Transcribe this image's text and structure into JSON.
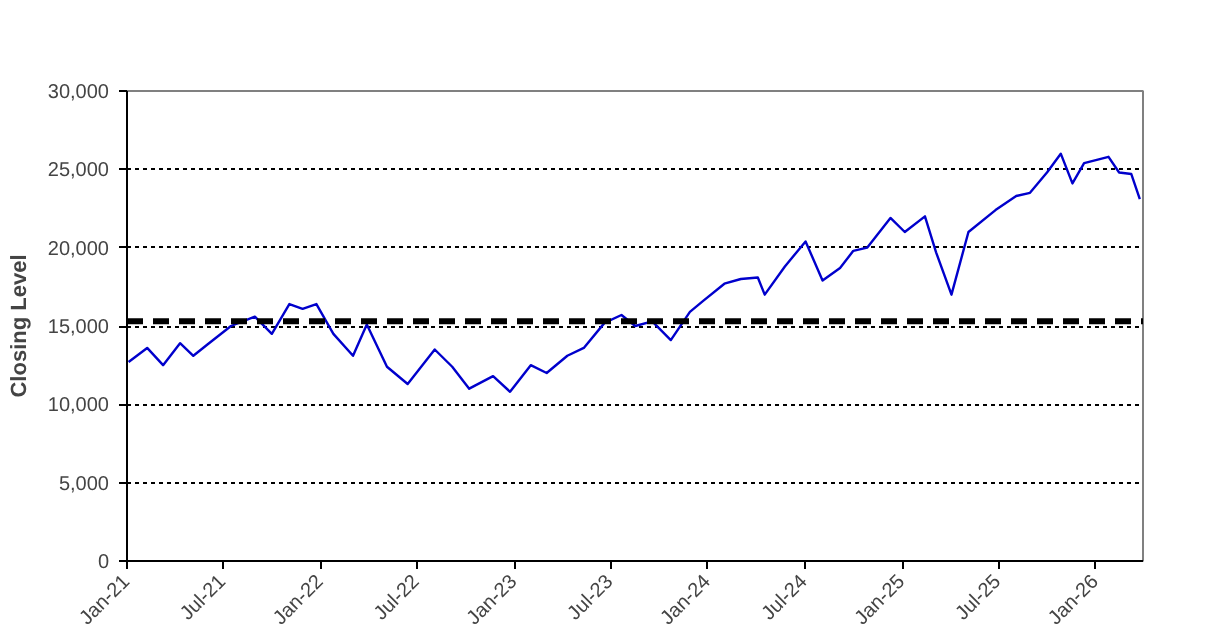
{
  "chart_data": {
    "type": "line",
    "ylabel": "Closing Level",
    "xlim": [
      "2021-01-01",
      "2026-03-31"
    ],
    "xticks": [
      {
        "value": "2021-01-01",
        "label": "Jan-21"
      },
      {
        "value": "2021-07-01",
        "label": "Jul-21"
      },
      {
        "value": "2022-01-01",
        "label": "Jan-22"
      },
      {
        "value": "2022-07-01",
        "label": "Jul-22"
      },
      {
        "value": "2023-01-01",
        "label": "Jan-23"
      },
      {
        "value": "2023-07-01",
        "label": "Jul-23"
      },
      {
        "value": "2024-01-01",
        "label": "Jan-24"
      },
      {
        "value": "2024-07-01",
        "label": "Jul-24"
      },
      {
        "value": "2025-01-01",
        "label": "Jan-25"
      },
      {
        "value": "2025-07-01",
        "label": "Jul-25"
      },
      {
        "value": "2026-01-01",
        "label": "Jan-26"
      }
    ],
    "ylim": [
      0,
      30000
    ],
    "yticks": [
      0,
      {
        "value": 5000,
        "label": "5,000"
      },
      {
        "value": 10000,
        "label": "10,000"
      },
      {
        "value": 15000,
        "label": "15,000"
      },
      {
        "value": 20000,
        "label": "20,000"
      },
      {
        "value": 25000,
        "label": "25,000"
      },
      {
        "value": 30000,
        "label": "30,000"
      }
    ],
    "grid": "y",
    "marker": "none",
    "line_style": "solid",
    "ref_lines": [
      {
        "axis": "y",
        "value": 15300,
        "label": null,
        "color": "#000000",
        "line_style": "dashed"
      }
    ],
    "series": [
      {
        "color": "#0000cc",
        "x": [
          "2021-01-04",
          "2021-02-08",
          "2021-03-10",
          "2021-04-11",
          "2021-05-06",
          "2021-06-01",
          "2021-07-16",
          "2021-08-30",
          "2021-10-01",
          "2021-11-03",
          "2021-11-28",
          "2021-12-24",
          "2022-01-25",
          "2022-03-03",
          "2022-03-29",
          "2022-05-06",
          "2022-06-14",
          "2022-08-04",
          "2022-09-06",
          "2022-10-08",
          "2022-11-22",
          "2022-12-24",
          "2023-02-01",
          "2023-03-03",
          "2023-04-11",
          "2023-05-12",
          "2023-06-20",
          "2023-07-22",
          "2023-08-17",
          "2023-09-18",
          "2023-10-23",
          "2023-11-28",
          "2023-12-23",
          "2024-02-01",
          "2024-03-03",
          "2024-04-04",
          "2024-04-17",
          "2024-05-25",
          "2024-07-03",
          "2024-08-04",
          "2024-09-06",
          "2024-10-01",
          "2024-10-27",
          "2024-12-10",
          "2025-01-06",
          "2025-02-13",
          "2025-03-06",
          "2025-04-04",
          "2025-05-06",
          "2025-06-26",
          "2025-08-04",
          "2025-08-30",
          "2025-10-01",
          "2025-10-27",
          "2025-11-18",
          "2025-12-10",
          "2026-01-25",
          "2026-02-14",
          "2026-03-09",
          "2026-03-25"
        ],
        "values": [
          12700,
          13600,
          12500,
          13900,
          13100,
          13800,
          15000,
          15600,
          14500,
          16400,
          16100,
          16400,
          14500,
          13100,
          15100,
          12400,
          11300,
          13500,
          12400,
          11000,
          11800,
          10800,
          12500,
          12000,
          13100,
          13600,
          15200,
          15700,
          15000,
          15300,
          14100,
          15900,
          16600,
          17700,
          18000,
          18100,
          17000,
          18800,
          20400,
          17900,
          18700,
          19800,
          20000,
          21900,
          21000,
          22000,
          19700,
          17000,
          21000,
          22400,
          23300,
          23500,
          24800,
          26000,
          24100,
          25400,
          25800,
          24800,
          24700,
          23100
        ]
      }
    ]
  }
}
